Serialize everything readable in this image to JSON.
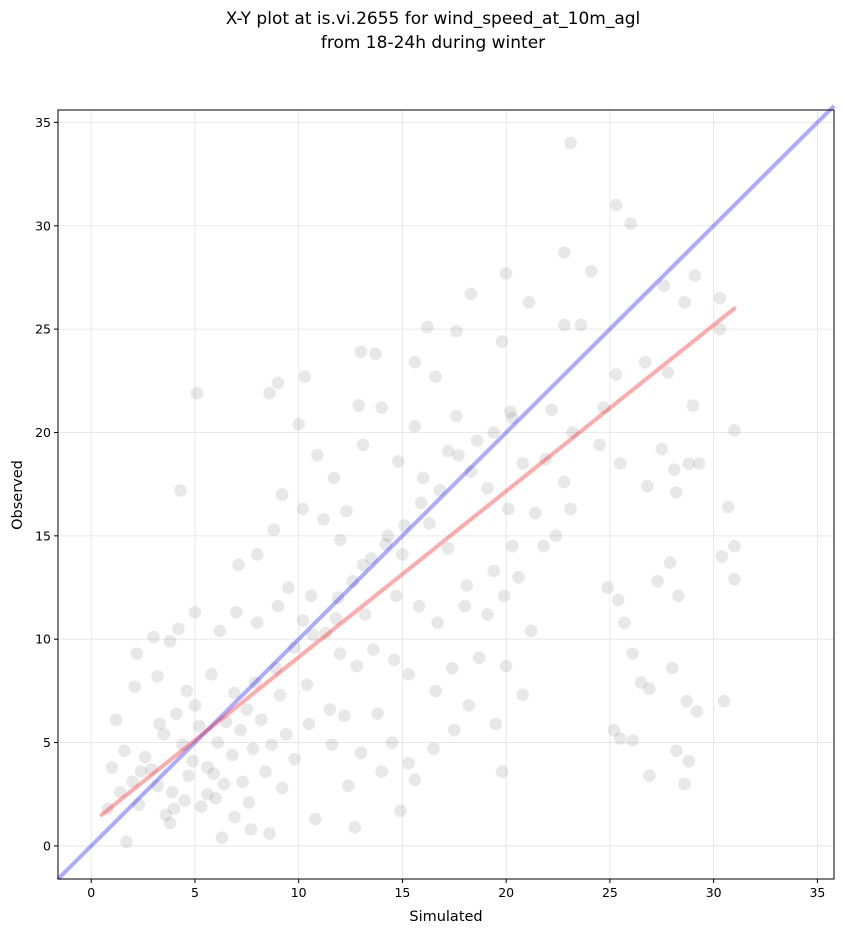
{
  "chart_data": {
    "type": "scatter",
    "title": [
      "X-Y plot at is.vi.2655 for wind_speed_at_10m_agl",
      "from 18-24h during winter"
    ],
    "xlabel": "Simulated",
    "ylabel": "Observed",
    "xlim": [
      -1.6,
      35.8
    ],
    "ylim": [
      -1.6,
      35.6
    ],
    "xticks": [
      0,
      5,
      10,
      15,
      20,
      25,
      30,
      35
    ],
    "yticks": [
      0,
      5,
      10,
      15,
      20,
      25,
      30,
      35
    ],
    "grid": true,
    "colors": {
      "points": "#000000",
      "identity_line": "#0000ff",
      "fit_line": "#ff0000"
    },
    "identity_line": {
      "x": [
        -1.6,
        35.8
      ],
      "y": [
        -1.6,
        35.8
      ]
    },
    "fit_line": {
      "x": [
        0.5,
        31.0
      ],
      "y": [
        1.5,
        26.0
      ]
    },
    "points": [
      [
        23.1,
        34.0
      ],
      [
        25.3,
        31.0
      ],
      [
        26.0,
        30.1
      ],
      [
        20.0,
        27.7
      ],
      [
        22.8,
        28.7
      ],
      [
        24.1,
        27.8
      ],
      [
        27.6,
        27.1
      ],
      [
        29.1,
        27.6
      ],
      [
        30.3,
        26.5
      ],
      [
        28.6,
        26.3
      ],
      [
        18.3,
        26.7
      ],
      [
        21.1,
        26.3
      ],
      [
        22.8,
        25.2
      ],
      [
        23.6,
        25.2
      ],
      [
        16.2,
        25.1
      ],
      [
        17.6,
        24.9
      ],
      [
        19.8,
        24.4
      ],
      [
        30.3,
        25.0
      ],
      [
        13.0,
        23.9
      ],
      [
        13.7,
        23.8
      ],
      [
        15.6,
        23.4
      ],
      [
        16.6,
        22.7
      ],
      [
        9.0,
        22.4
      ],
      [
        10.3,
        22.7
      ],
      [
        8.6,
        21.9
      ],
      [
        5.1,
        21.9
      ],
      [
        12.9,
        21.3
      ],
      [
        14.0,
        21.2
      ],
      [
        15.6,
        20.3
      ],
      [
        17.6,
        20.8
      ],
      [
        20.2,
        21.0
      ],
      [
        22.2,
        21.1
      ],
      [
        24.7,
        21.2
      ],
      [
        25.3,
        22.8
      ],
      [
        26.7,
        23.4
      ],
      [
        27.8,
        22.9
      ],
      [
        31.0,
        20.1
      ],
      [
        29.3,
        18.5
      ],
      [
        30.7,
        16.4
      ],
      [
        31.0,
        14.5
      ],
      [
        31.0,
        12.9
      ],
      [
        30.4,
        14.0
      ],
      [
        29.0,
        21.3
      ],
      [
        27.5,
        19.2
      ],
      [
        28.1,
        18.2
      ],
      [
        26.8,
        17.4
      ],
      [
        28.2,
        17.1
      ],
      [
        28.8,
        18.5
      ],
      [
        24.5,
        19.4
      ],
      [
        23.2,
        20.0
      ],
      [
        21.9,
        18.7
      ],
      [
        20.8,
        18.5
      ],
      [
        22.8,
        17.6
      ],
      [
        25.5,
        18.5
      ],
      [
        10.0,
        20.4
      ],
      [
        10.9,
        18.9
      ],
      [
        11.7,
        17.8
      ],
      [
        12.3,
        16.2
      ],
      [
        13.1,
        19.4
      ],
      [
        14.8,
        18.6
      ],
      [
        16.0,
        17.8
      ],
      [
        17.2,
        19.1
      ],
      [
        18.3,
        18.1
      ],
      [
        19.1,
        17.3
      ],
      [
        20.1,
        16.3
      ],
      [
        21.4,
        16.1
      ],
      [
        22.4,
        15.0
      ],
      [
        23.1,
        16.3
      ],
      [
        21.8,
        14.5
      ],
      [
        20.3,
        14.5
      ],
      [
        19.4,
        13.3
      ],
      [
        18.1,
        12.6
      ],
      [
        17.2,
        14.4
      ],
      [
        16.3,
        15.6
      ],
      [
        15.0,
        14.1
      ],
      [
        14.3,
        15.0
      ],
      [
        13.1,
        13.6
      ],
      [
        12.0,
        14.8
      ],
      [
        11.2,
        15.8
      ],
      [
        10.2,
        16.3
      ],
      [
        9.2,
        17.0
      ],
      [
        8.8,
        15.3
      ],
      [
        8.0,
        14.1
      ],
      [
        7.1,
        13.6
      ],
      [
        4.3,
        17.2
      ],
      [
        9.5,
        12.5
      ],
      [
        10.6,
        12.1
      ],
      [
        11.9,
        12.0
      ],
      [
        13.2,
        11.2
      ],
      [
        14.7,
        12.1
      ],
      [
        15.8,
        11.6
      ],
      [
        16.7,
        10.8
      ],
      [
        18.0,
        11.6
      ],
      [
        19.1,
        11.2
      ],
      [
        19.9,
        12.1
      ],
      [
        20.6,
        13.0
      ],
      [
        21.2,
        10.4
      ],
      [
        20.8,
        7.3
      ],
      [
        20.0,
        8.7
      ],
      [
        18.7,
        9.1
      ],
      [
        17.4,
        8.6
      ],
      [
        16.6,
        7.5
      ],
      [
        15.3,
        8.3
      ],
      [
        14.6,
        9.0
      ],
      [
        13.6,
        9.5
      ],
      [
        12.8,
        8.7
      ],
      [
        12.0,
        9.3
      ],
      [
        11.3,
        10.3
      ],
      [
        10.2,
        10.9
      ],
      [
        9.0,
        11.6
      ],
      [
        8.0,
        10.8
      ],
      [
        7.0,
        11.3
      ],
      [
        6.2,
        10.4
      ],
      [
        5.0,
        11.3
      ],
      [
        4.2,
        10.5
      ],
      [
        3.0,
        10.1
      ],
      [
        3.8,
        9.9
      ],
      [
        2.2,
        9.3
      ],
      [
        18.2,
        6.8
      ],
      [
        19.5,
        5.9
      ],
      [
        19.8,
        3.6
      ],
      [
        17.5,
        5.6
      ],
      [
        16.5,
        4.7
      ],
      [
        15.6,
        3.2
      ],
      [
        15.3,
        4.0
      ],
      [
        14.5,
        5.0
      ],
      [
        13.8,
        6.4
      ],
      [
        14.0,
        3.6
      ],
      [
        13.0,
        4.5
      ],
      [
        12.4,
        2.9
      ],
      [
        11.6,
        4.9
      ],
      [
        10.5,
        5.9
      ],
      [
        9.8,
        4.2
      ],
      [
        9.2,
        2.8
      ],
      [
        8.4,
        3.6
      ],
      [
        7.6,
        2.1
      ],
      [
        6.4,
        3.0
      ],
      [
        5.6,
        2.5
      ],
      [
        4.7,
        3.4
      ],
      [
        4.0,
        1.8
      ],
      [
        3.2,
        2.9
      ],
      [
        2.4,
        3.6
      ],
      [
        1.4,
        2.6
      ],
      [
        0.8,
        1.8
      ],
      [
        1.7,
        0.2
      ],
      [
        3.8,
        1.1
      ],
      [
        6.3,
        0.4
      ],
      [
        8.6,
        0.6
      ],
      [
        10.8,
        1.3
      ],
      [
        12.7,
        0.9
      ],
      [
        14.9,
        1.7
      ],
      [
        7.7,
        0.8
      ],
      [
        24.9,
        12.5
      ],
      [
        25.4,
        11.9
      ],
      [
        25.7,
        10.8
      ],
      [
        26.1,
        9.3
      ],
      [
        26.5,
        7.9
      ],
      [
        26.9,
        7.6
      ],
      [
        27.3,
        12.8
      ],
      [
        27.9,
        13.7
      ],
      [
        28.3,
        12.1
      ],
      [
        28.0,
        8.6
      ],
      [
        28.7,
        7.0
      ],
      [
        29.2,
        6.5
      ],
      [
        30.5,
        7.0
      ],
      [
        25.2,
        5.6
      ],
      [
        25.5,
        5.2
      ],
      [
        26.1,
        5.1
      ],
      [
        26.9,
        3.4
      ],
      [
        28.2,
        4.6
      ],
      [
        28.6,
        3.0
      ],
      [
        28.8,
        4.1
      ],
      [
        1.2,
        6.1
      ],
      [
        2.1,
        7.7
      ],
      [
        3.2,
        8.2
      ],
      [
        4.6,
        7.5
      ],
      [
        5.8,
        8.3
      ],
      [
        6.9,
        7.4
      ],
      [
        7.9,
        7.9
      ],
      [
        9.1,
        7.3
      ],
      [
        10.4,
        7.8
      ],
      [
        11.5,
        6.6
      ],
      [
        12.2,
        6.3
      ],
      [
        1.6,
        4.6
      ],
      [
        2.6,
        4.3
      ],
      [
        3.5,
        5.4
      ],
      [
        4.4,
        4.9
      ],
      [
        5.2,
        5.8
      ],
      [
        6.1,
        5.0
      ],
      [
        7.2,
        5.6
      ],
      [
        8.2,
        6.1
      ],
      [
        9.4,
        5.4
      ],
      [
        2.0,
        3.1
      ],
      [
        2.9,
        3.7
      ],
      [
        3.9,
        2.6
      ],
      [
        4.9,
        4.1
      ],
      [
        5.9,
        3.5
      ],
      [
        6.8,
        4.4
      ],
      [
        7.8,
        4.7
      ],
      [
        8.7,
        4.9
      ],
      [
        3.3,
        5.9
      ],
      [
        4.1,
        6.4
      ],
      [
        5.0,
        6.8
      ],
      [
        5.6,
        3.8
      ],
      [
        6.5,
        6.0
      ],
      [
        7.5,
        6.6
      ],
      [
        8.9,
        8.6
      ],
      [
        9.8,
        9.6
      ],
      [
        10.7,
        10.2
      ],
      [
        11.8,
        11.0
      ],
      [
        12.6,
        12.8
      ],
      [
        13.5,
        13.9
      ],
      [
        14.2,
        14.6
      ],
      [
        15.1,
        15.5
      ],
      [
        15.9,
        16.6
      ],
      [
        16.8,
        17.2
      ],
      [
        17.7,
        18.9
      ],
      [
        18.6,
        19.6
      ],
      [
        19.4,
        20.0
      ],
      [
        20.3,
        20.7
      ],
      [
        1.0,
        3.8
      ],
      [
        2.3,
        2.0
      ],
      [
        3.6,
        1.5
      ],
      [
        4.5,
        2.2
      ],
      [
        5.3,
        1.9
      ],
      [
        6.0,
        2.3
      ],
      [
        6.9,
        1.4
      ],
      [
        7.3,
        3.1
      ]
    ]
  }
}
